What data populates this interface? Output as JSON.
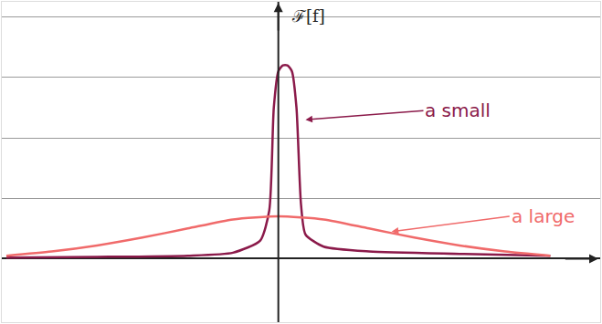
{
  "chart_data": {
    "type": "line",
    "y_label": "ℱ[f]",
    "series": [
      {
        "name": "a small",
        "color": "#8b1a4a",
        "x": [
          -3,
          -2,
          -1,
          -0.5,
          -0.2,
          -0.1,
          -0.05,
          0,
          0.05,
          0.1,
          0.15,
          0.2,
          0.25,
          0.3,
          0.5,
          1,
          2,
          3
        ],
        "values": [
          0.02,
          0.03,
          0.05,
          0.1,
          0.3,
          0.8,
          2.5,
          3.1,
          3.2,
          3.2,
          3.1,
          2.5,
          0.9,
          0.4,
          0.2,
          0.12,
          0.08,
          0.05
        ]
      },
      {
        "name": "a large",
        "color": "#f06a6a",
        "x": [
          -3,
          -2.5,
          -2,
          -1.5,
          -1,
          -0.5,
          0,
          0.5,
          1,
          1.5,
          2,
          2.5,
          3
        ],
        "values": [
          0.05,
          0.12,
          0.22,
          0.35,
          0.5,
          0.65,
          0.7,
          0.65,
          0.5,
          0.35,
          0.22,
          0.12,
          0.05
        ]
      }
    ],
    "xlim": [
      -3.05,
      3.55
    ],
    "ylim": [
      -1.05,
      4.25
    ],
    "yticks": [
      0,
      1,
      2,
      3,
      4
    ],
    "grid": true,
    "tick_labels": false
  }
}
